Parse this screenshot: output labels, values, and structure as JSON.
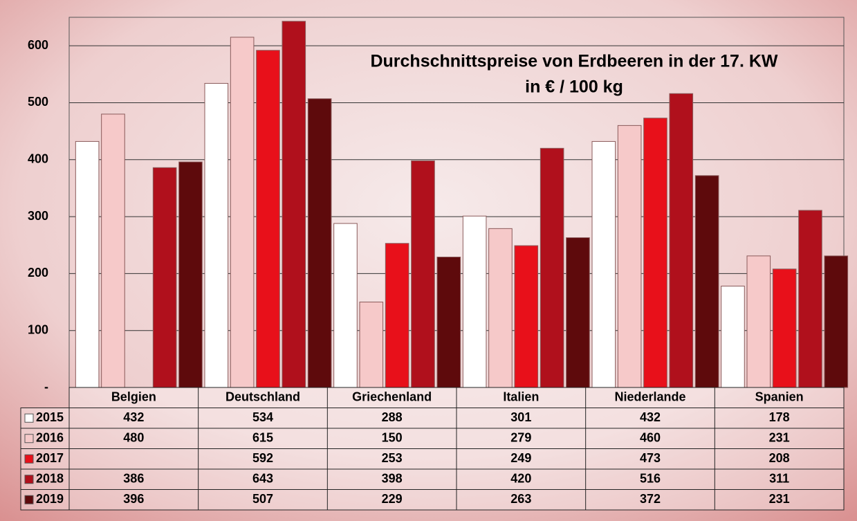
{
  "chart_data": {
    "type": "bar",
    "title": "Durchschnittspreise von Erdbeeren in der 17. KW",
    "subtitle": "in € / 100 kg",
    "categories": [
      "Belgien",
      "Deutschland",
      "Griechenland",
      "Italien",
      "Niederlande",
      "Spanien"
    ],
    "series": [
      {
        "name": "2015",
        "color": "#ffffff",
        "values": [
          432,
          534,
          288,
          301,
          432,
          178
        ]
      },
      {
        "name": "2016",
        "color": "#f6c9c9",
        "values": [
          480,
          615,
          150,
          279,
          460,
          231
        ]
      },
      {
        "name": "2017",
        "color": "#e8101a",
        "values": [
          null,
          592,
          253,
          249,
          473,
          208
        ]
      },
      {
        "name": "2018",
        "color": "#b0101c",
        "values": [
          386,
          643,
          398,
          420,
          516,
          311
        ]
      },
      {
        "name": "2019",
        "color": "#5e0a0c",
        "values": [
          396,
          507,
          229,
          263,
          372,
          231
        ]
      }
    ],
    "ylim": [
      0,
      650
    ],
    "yticks": [
      {
        "value": 0,
        "label": "-"
      },
      100,
      200,
      300,
      400,
      500,
      600
    ],
    "grid": true,
    "data_table": true
  }
}
